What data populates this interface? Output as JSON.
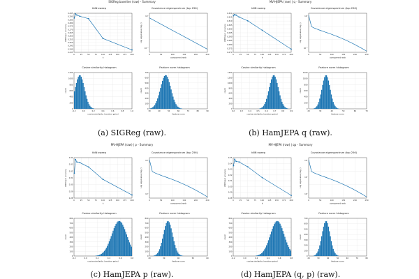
{
  "figures": [
    {
      "suptitle": "SIGReg baseline (raw) - Summary",
      "caption": "(a) SIGReg (raw).",
      "knn": {
        "title": "kNN sweep",
        "xlabel": "k",
        "ylabel": "kNN top-1 accuracy",
        "x": [
          1,
          5,
          10,
          20,
          50,
          100,
          200
        ],
        "y": [
          0.292,
          0.299,
          0.297,
          0.295,
          0.291,
          0.258,
          0.239
        ],
        "ylim": [
          0.235,
          0.3
        ],
        "yticks": [
          "0.235",
          "0.240",
          "0.245",
          "0.250",
          "0.255",
          "0.260",
          "0.265",
          "0.270",
          "0.275",
          "0.280",
          "0.285",
          "0.290",
          "0.295"
        ],
        "xticks": [
          "0",
          "25",
          "50",
          "75",
          "100",
          "125",
          "150",
          "175",
          "200"
        ]
      },
      "eig": {
        "title": "Covariance eigenspectrum (top 256)",
        "xlabel": "component rank",
        "ylabel": "Log eigenvalue (log y)",
        "yticks": [
          "10⁰",
          "10⁻¹"
        ],
        "xticks": [
          "0",
          "50",
          "100",
          "150",
          "200",
          "250"
        ],
        "shape": "steep"
      },
      "cos": {
        "title": "Cosine similarity histogram",
        "xlabel": "cosine similarity (random pairs)",
        "ylabel": "count",
        "xticks": [
          "-0.2",
          "0.0",
          "0.2",
          "0.4",
          "0.6",
          "0.8",
          "1.0"
        ],
        "yticks": [
          "0",
          "200",
          "400",
          "600",
          "800",
          "1000",
          "1200"
        ],
        "peak_frac": 0.1,
        "width_frac": 0.08
      },
      "norm": {
        "title": "Feature norm histogram",
        "xlabel": "feature norm",
        "ylabel": "count",
        "xticks": [
          "30",
          "40",
          "50",
          "60",
          "70",
          "80",
          "90"
        ],
        "yticks": [
          "0",
          "100",
          "200",
          "300",
          "400",
          "500",
          "600",
          "700"
        ],
        "peak_frac": 0.28,
        "width_frac": 0.09
      }
    },
    {
      "suptitle": "MV-HJEPA (raw) | q - Summary",
      "caption": "(b) HamJEPA q (raw).",
      "knn": {
        "title": "kNN sweep",
        "xlabel": "k",
        "ylabel": "kNN top-1 accuracy",
        "x": [
          1,
          5,
          10,
          20,
          50,
          100,
          200
        ],
        "y": [
          0.318,
          0.32,
          0.319,
          0.316,
          0.31,
          0.295,
          0.265
        ],
        "ylim": [
          0.26,
          0.322
        ],
        "yticks": [
          "0.270",
          "0.275",
          "0.280",
          "0.285",
          "0.290",
          "0.295",
          "0.300",
          "0.305",
          "0.310",
          "0.315",
          "0.320"
        ],
        "xticks": [
          "0",
          "25",
          "50",
          "75",
          "100",
          "125",
          "150",
          "175",
          "200"
        ]
      },
      "eig": {
        "title": "Covariance eigenspectrum (top 256)",
        "xlabel": "component rank",
        "ylabel": "Log eigenvalue (log y)",
        "yticks": [
          "10⁰",
          "10⁻¹"
        ],
        "xticks": [
          "0",
          "50",
          "100",
          "150",
          "200",
          "250"
        ],
        "shape": "knee"
      },
      "cos": {
        "title": "Cosine similarity histogram",
        "xlabel": "cosine similarity (random pairs)",
        "ylabel": "count",
        "xticks": [
          "0.2",
          "0.3",
          "0.4",
          "0.5",
          "0.6",
          "0.7",
          "0.8",
          "0.9"
        ],
        "yticks": [
          "0",
          "200",
          "400",
          "600",
          "800",
          "1000",
          "1200",
          "1400"
        ],
        "peak_frac": 0.7,
        "width_frac": 0.08
      },
      "norm": {
        "title": "Feature norm histogram",
        "xlabel": "feature norm",
        "ylabel": "count",
        "xticks": [
          "20",
          "30",
          "40",
          "50",
          "60",
          "70"
        ],
        "yticks": [
          "0",
          "200",
          "400",
          "600",
          "800",
          "1000",
          "1200"
        ],
        "peak_frac": 0.3,
        "width_frac": 0.07
      }
    },
    {
      "suptitle": "MV-HJEPA (raw) | p - Summary",
      "caption": "(c) HamJEPA p (raw).",
      "knn": {
        "title": "kNN sweep",
        "xlabel": "k",
        "ylabel": "kNN top-1 accuracy",
        "x": [
          1,
          5,
          10,
          20,
          50,
          100,
          200
        ],
        "y": [
          0.32,
          0.342,
          0.338,
          0.337,
          0.33,
          0.31,
          0.285
        ],
        "ylim": [
          0.28,
          0.345
        ],
        "yticks": [
          "0.28",
          "0.29",
          "0.30",
          "0.31",
          "0.32",
          "0.33",
          "0.34"
        ],
        "xticks": [
          "0",
          "25",
          "50",
          "75",
          "100",
          "125",
          "150",
          "175",
          "200"
        ]
      },
      "eig": {
        "title": "Covariance eigenspectrum (top 256)",
        "xlabel": "component rank",
        "ylabel": "Log eigenvalue (log y)",
        "yticks": [
          "10²",
          "10¹"
        ],
        "xticks": [
          "0",
          "50",
          "100",
          "150",
          "200",
          "250"
        ],
        "shape": "knee"
      },
      "cos": {
        "title": "Cosine similarity histogram",
        "xlabel": "cosine similarity (random pairs)",
        "ylabel": "count",
        "xticks": [
          "-0.2",
          "0.0",
          "0.2",
          "0.4",
          "0.6",
          "0.8"
        ],
        "yticks": [
          "0",
          "100",
          "200",
          "300",
          "400",
          "500",
          "600",
          "700",
          "800"
        ],
        "peak_frac": 0.78,
        "width_frac": 0.13
      },
      "norm": {
        "title": "Feature norm histogram",
        "xlabel": "feature norm",
        "ylabel": "count",
        "xticks": [
          "20",
          "30",
          "40",
          "50",
          "60"
        ],
        "yticks": [
          "0",
          "100",
          "200",
          "300",
          "400",
          "500",
          "600",
          "700",
          "800"
        ],
        "peak_frac": 0.32,
        "width_frac": 0.08
      }
    },
    {
      "suptitle": "MV-HJEPA (raw) | qp - Summary",
      "caption": "(d) HamJEPA (q, p) (raw).",
      "knn": {
        "title": "kNN sweep",
        "xlabel": "k",
        "ylabel": "kNN top-1 accuracy",
        "x": [
          1,
          5,
          10,
          20,
          50,
          100,
          200
        ],
        "y": [
          0.34,
          0.352,
          0.348,
          0.347,
          0.338,
          0.318,
          0.285
        ],
        "ylim": [
          0.28,
          0.355
        ],
        "yticks": [
          "0.28",
          "0.29",
          "0.30",
          "0.31",
          "0.32",
          "0.33",
          "0.34",
          "0.35"
        ],
        "xticks": [
          "0",
          "25",
          "50",
          "75",
          "100",
          "125",
          "150",
          "175",
          "200"
        ]
      },
      "eig": {
        "title": "Covariance eigenspectrum (top 256)",
        "xlabel": "component rank",
        "ylabel": "Log eigenvalue (log y)",
        "yticks": [
          "10²",
          "10¹",
          "10⁰"
        ],
        "xticks": [
          "0",
          "50",
          "100",
          "150",
          "200",
          "250"
        ],
        "shape": "knee"
      },
      "cos": {
        "title": "Cosine similarity histogram",
        "xlabel": "cosine similarity (random pairs)",
        "ylabel": "count",
        "xticks": [
          "-0.2",
          "0.0",
          "0.2",
          "0.4",
          "0.6",
          "0.8"
        ],
        "yticks": [
          "0",
          "100",
          "200",
          "300",
          "400",
          "500",
          "600",
          "700",
          "800"
        ],
        "peak_frac": 0.76,
        "width_frac": 0.12
      },
      "norm": {
        "title": "Feature norm histogram",
        "xlabel": "feature norm",
        "ylabel": "count",
        "xticks": [
          "20",
          "30",
          "40",
          "50",
          "60",
          "70",
          "80"
        ],
        "yticks": [
          "0",
          "100",
          "200",
          "300",
          "400",
          "500",
          "600",
          "700"
        ],
        "peak_frac": 0.3,
        "width_frac": 0.07
      }
    }
  ]
}
